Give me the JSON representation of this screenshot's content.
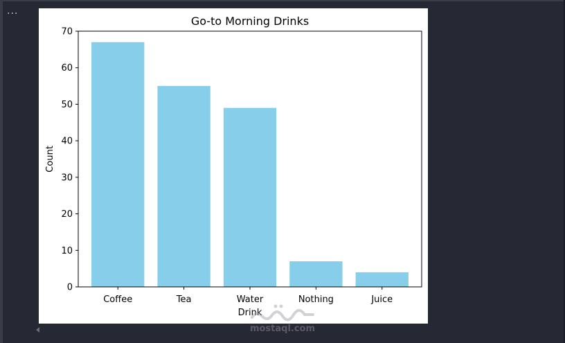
{
  "cell": {
    "menu_glyph": "..."
  },
  "watermark": {
    "text": "mostaql.com",
    "script": "مستقل"
  },
  "chart_data": {
    "type": "bar",
    "title": "Go-to Morning Drinks",
    "xlabel": "Drink",
    "ylabel": "Count",
    "categories": [
      "Coffee",
      "Tea",
      "Water",
      "Nothing",
      "Juice"
    ],
    "values": [
      67,
      55,
      49,
      7,
      4
    ],
    "ylim": [
      0,
      70
    ],
    "yticks": [
      0,
      10,
      20,
      30,
      40,
      50,
      60,
      70
    ],
    "bar_color": "#87ceeb",
    "grid": false,
    "legend": "none"
  }
}
